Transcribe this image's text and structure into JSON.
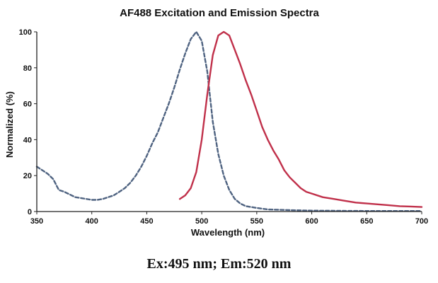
{
  "chart_data": {
    "type": "line",
    "title": "AF488 Excitation and Emission Spectra",
    "xlabel": "Wavelength (nm)",
    "ylabel": "Normalized (%)",
    "xlim": [
      350,
      700
    ],
    "ylim": [
      0,
      100
    ],
    "x_ticks": [
      350,
      400,
      450,
      500,
      550,
      600,
      650,
      700
    ],
    "y_ticks": [
      0,
      20,
      40,
      60,
      80,
      100
    ],
    "grid": false,
    "legend": "none",
    "series": [
      {
        "color": "#4f6381",
        "style": "dashed",
        "points": [
          [
            350,
            25
          ],
          [
            355,
            23
          ],
          [
            360,
            21
          ],
          [
            365,
            18
          ],
          [
            370,
            12
          ],
          [
            375,
            11
          ],
          [
            380,
            9.5
          ],
          [
            385,
            8
          ],
          [
            390,
            7.5
          ],
          [
            395,
            7
          ],
          [
            400,
            6.5
          ],
          [
            405,
            6.5
          ],
          [
            410,
            7
          ],
          [
            415,
            8
          ],
          [
            420,
            9
          ],
          [
            425,
            11
          ],
          [
            430,
            13
          ],
          [
            435,
            16
          ],
          [
            440,
            20
          ],
          [
            445,
            25
          ],
          [
            450,
            31
          ],
          [
            455,
            38
          ],
          [
            460,
            44
          ],
          [
            465,
            52
          ],
          [
            470,
            60
          ],
          [
            475,
            69
          ],
          [
            480,
            79
          ],
          [
            485,
            88
          ],
          [
            490,
            96
          ],
          [
            495,
            100
          ],
          [
            500,
            95
          ],
          [
            505,
            78
          ],
          [
            510,
            50
          ],
          [
            515,
            32
          ],
          [
            520,
            20
          ],
          [
            525,
            12
          ],
          [
            530,
            7
          ],
          [
            535,
            4.5
          ],
          [
            540,
            3
          ],
          [
            550,
            2
          ],
          [
            560,
            1.2
          ],
          [
            580,
            0.8
          ],
          [
            600,
            0.5
          ],
          [
            650,
            0.3
          ],
          [
            700,
            0.3
          ]
        ]
      },
      {
        "color": "#c0304a",
        "style": "solid",
        "points": [
          [
            480,
            7
          ],
          [
            485,
            9
          ],
          [
            490,
            13
          ],
          [
            495,
            22
          ],
          [
            500,
            40
          ],
          [
            505,
            65
          ],
          [
            510,
            87
          ],
          [
            515,
            98
          ],
          [
            520,
            100
          ],
          [
            525,
            98
          ],
          [
            530,
            90
          ],
          [
            535,
            82
          ],
          [
            540,
            73
          ],
          [
            545,
            65
          ],
          [
            550,
            56
          ],
          [
            555,
            47
          ],
          [
            560,
            40
          ],
          [
            565,
            34
          ],
          [
            570,
            29
          ],
          [
            575,
            23
          ],
          [
            580,
            19
          ],
          [
            585,
            16
          ],
          [
            590,
            13
          ],
          [
            595,
            11
          ],
          [
            600,
            10
          ],
          [
            610,
            8
          ],
          [
            620,
            7
          ],
          [
            630,
            6
          ],
          [
            640,
            5
          ],
          [
            650,
            4.5
          ],
          [
            660,
            4
          ],
          [
            670,
            3.5
          ],
          [
            680,
            3
          ],
          [
            690,
            2.8
          ],
          [
            700,
            2.5
          ]
        ]
      }
    ]
  },
  "caption": "Ex:495 nm; Em:520 nm"
}
